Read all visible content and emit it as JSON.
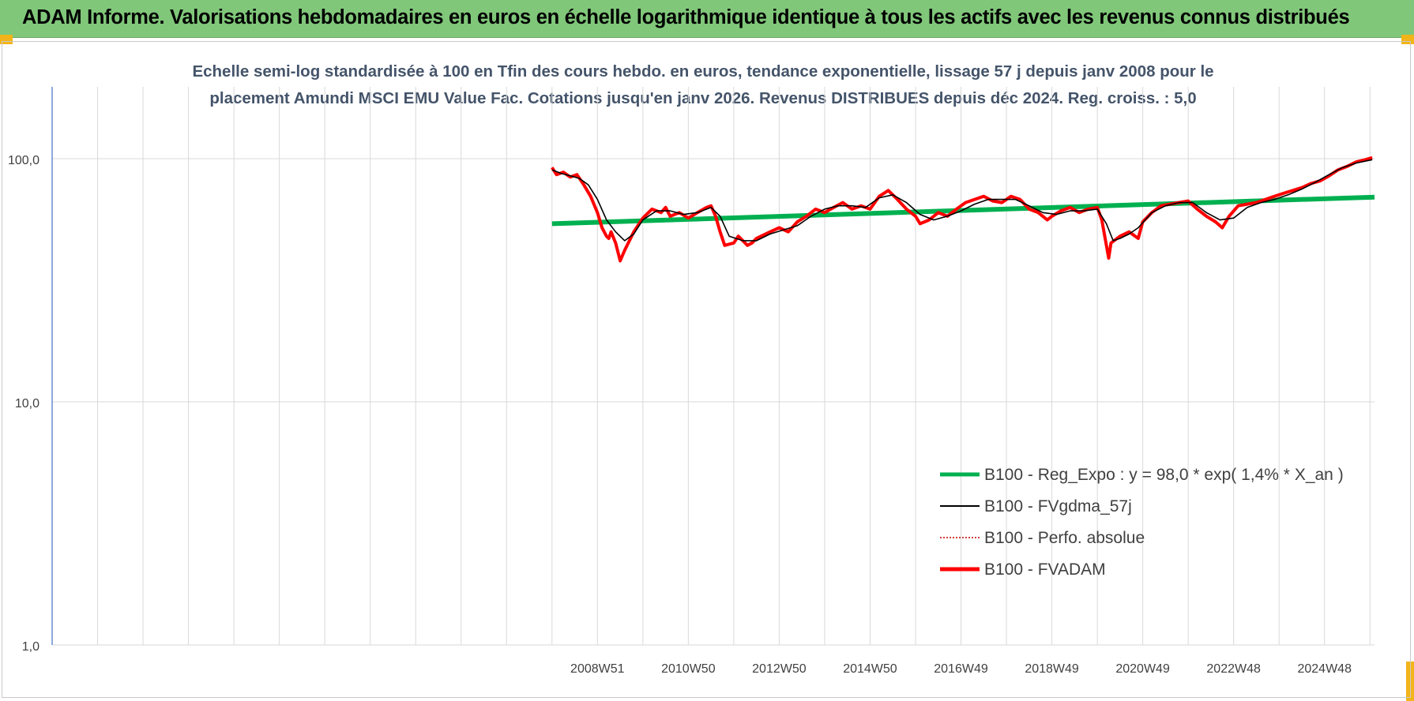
{
  "banner": {
    "title": "ADAM Informe. Valorisations hebdomadaires en euros en échelle logarithmique identique à tous les actifs avec les revenus connus distribués"
  },
  "colors": {
    "banner_bg": "#80c77a",
    "corner_accent": "#f2b418",
    "title_text": "#44546a",
    "regression": "#00b050",
    "smoothed": "#000000",
    "perf_absolue": "#c00000",
    "fvadam": "#ff0000",
    "gridline": "#d9d9d9",
    "y_axis_line": "#4472c4"
  },
  "chart_data": {
    "type": "line",
    "title_line1": "Echelle semi-log standardisée à 100 en Tfin des cours hebdo. en euros, tendance exponentielle, lissage 57 j depuis janv 2008 pour le",
    "title_line2": "placement Amundi MSCI EMU Value Fac. Cotations jusqu'en janv 2026. Revenus DISTRIBUES depuis déc 2024. Reg. croiss. : 5,0",
    "y_scale": "log",
    "ylim": [
      1,
      100
    ],
    "y_ticks": [
      {
        "value": 100,
        "label": "100,0"
      },
      {
        "value": 10,
        "label": "10,0"
      },
      {
        "value": 1,
        "label": "1,0"
      }
    ],
    "x_tick_labels": [
      "2008W51",
      "2010W50",
      "2012W50",
      "2014W50",
      "2016W49",
      "2018W49",
      "2020W49",
      "2022W48",
      "2024W48"
    ],
    "x_range_years": [
      1997.0,
      2026.1
    ],
    "x_tick_years": [
      2009.0,
      2011.0,
      2013.0,
      2015.0,
      2017.0,
      2019.0,
      2021.0,
      2023.0,
      2025.0
    ],
    "grid": true,
    "legend_position": "bottom-right",
    "legend": [
      {
        "label": "B100 - Reg_Expo : y = 98,0 * exp( 1,4% *  X_an )",
        "color": "#00b050",
        "style": "thick"
      },
      {
        "label": "B100 - FVgdma_57j",
        "color": "#000000",
        "style": "thin"
      },
      {
        "label": "B100 - Perfo. absolue",
        "color": "#c00000",
        "style": "dotted"
      },
      {
        "label": "B100 - FVADAM",
        "color": "#ff0000",
        "style": "thick"
      }
    ],
    "series": [
      {
        "name": "B100 - Reg_Expo : y = 98,0 * exp( 1,4% *  X_an )",
        "x": [
          2008.0,
          2026.1
        ],
        "y": [
          54.0,
          69.5
        ]
      },
      {
        "name": "B100 - FVADAM",
        "x": [
          2008.0,
          2008.1,
          2008.25,
          2008.4,
          2008.55,
          2008.7,
          2008.85,
          2009.0,
          2009.1,
          2009.2,
          2009.25,
          2009.3,
          2009.4,
          2009.5,
          2009.6,
          2009.8,
          2010.0,
          2010.2,
          2010.4,
          2010.5,
          2010.6,
          2010.8,
          2011.0,
          2011.2,
          2011.4,
          2011.5,
          2011.6,
          2011.7,
          2011.8,
          2012.0,
          2012.1,
          2012.2,
          2012.3,
          2012.4,
          2012.5,
          2012.6,
          2012.8,
          2013.0,
          2013.2,
          2013.4,
          2013.6,
          2013.8,
          2014.0,
          2014.2,
          2014.4,
          2014.6,
          2014.8,
          2015.0,
          2015.2,
          2015.4,
          2015.6,
          2015.8,
          2016.0,
          2016.1,
          2016.3,
          2016.5,
          2016.7,
          2016.9,
          2017.1,
          2017.3,
          2017.5,
          2017.7,
          2017.9,
          2018.1,
          2018.3,
          2018.5,
          2018.7,
          2018.9,
          2019.0,
          2019.2,
          2019.4,
          2019.6,
          2019.8,
          2020.0,
          2020.1,
          2020.2,
          2020.25,
          2020.3,
          2020.5,
          2020.7,
          2020.9,
          2021.0,
          2021.2,
          2021.4,
          2021.6,
          2021.8,
          2022.0,
          2022.2,
          2022.4,
          2022.6,
          2022.75,
          2022.9,
          2023.1,
          2023.3,
          2023.5,
          2023.7,
          2023.9,
          2024.1,
          2024.3,
          2024.5,
          2024.7,
          2024.9,
          2025.1,
          2025.3,
          2025.5,
          2025.7,
          2025.9,
          2026.05
        ],
        "y": [
          92,
          86,
          88,
          84,
          86,
          78,
          70,
          60,
          52,
          48,
          47,
          50,
          45,
          38,
          42,
          50,
          57,
          62,
          60,
          63,
          58,
          60,
          57,
          60,
          63,
          64,
          58,
          50,
          44,
          45,
          48,
          46,
          44,
          45,
          47,
          48,
          50,
          52,
          50,
          55,
          58,
          62,
          60,
          63,
          66,
          62,
          64,
          62,
          70,
          74,
          68,
          62,
          58,
          54,
          56,
          60,
          58,
          62,
          66,
          68,
          70,
          67,
          66,
          70,
          68,
          62,
          60,
          56,
          58,
          61,
          63,
          60,
          62,
          63,
          56,
          44,
          39,
          45,
          48,
          50,
          47,
          55,
          60,
          64,
          65,
          66,
          67,
          62,
          58,
          55,
          52,
          58,
          64,
          65,
          66,
          68,
          70,
          72,
          74,
          76,
          79,
          81,
          85,
          90,
          93,
          97,
          99,
          101
        ]
      },
      {
        "name": "B100 - FVgdma_57j",
        "x": [
          2008.0,
          2008.2,
          2008.4,
          2008.6,
          2008.8,
          2009.0,
          2009.2,
          2009.4,
          2009.6,
          2009.8,
          2010.0,
          2010.3,
          2010.6,
          2010.9,
          2011.2,
          2011.5,
          2011.7,
          2011.9,
          2012.2,
          2012.5,
          2012.8,
          2013.1,
          2013.4,
          2013.7,
          2014.0,
          2014.3,
          2014.6,
          2014.9,
          2015.2,
          2015.5,
          2015.8,
          2016.1,
          2016.4,
          2016.7,
          2017.0,
          2017.3,
          2017.6,
          2017.9,
          2018.2,
          2018.5,
          2018.8,
          2019.1,
          2019.4,
          2019.7,
          2020.0,
          2020.2,
          2020.35,
          2020.5,
          2020.7,
          2020.9,
          2021.2,
          2021.5,
          2021.8,
          2022.1,
          2022.4,
          2022.7,
          2023.0,
          2023.3,
          2023.6,
          2023.9,
          2024.2,
          2024.5,
          2024.8,
          2025.1,
          2025.4,
          2025.7,
          2026.05
        ],
        "y": [
          90,
          87,
          85,
          83,
          78,
          68,
          56,
          50,
          46,
          49,
          56,
          61,
          61,
          59,
          60,
          63,
          58,
          48,
          46,
          46,
          49,
          51,
          53,
          58,
          62,
          64,
          64,
          63,
          69,
          71,
          66,
          59,
          56,
          58,
          61,
          65,
          68,
          68,
          68,
          64,
          60,
          59,
          61,
          61,
          62,
          54,
          46,
          47,
          49,
          52,
          60,
          64,
          66,
          66,
          60,
          56,
          57,
          63,
          66,
          68,
          71,
          75,
          80,
          86,
          92,
          96,
          99
        ]
      }
    ]
  }
}
